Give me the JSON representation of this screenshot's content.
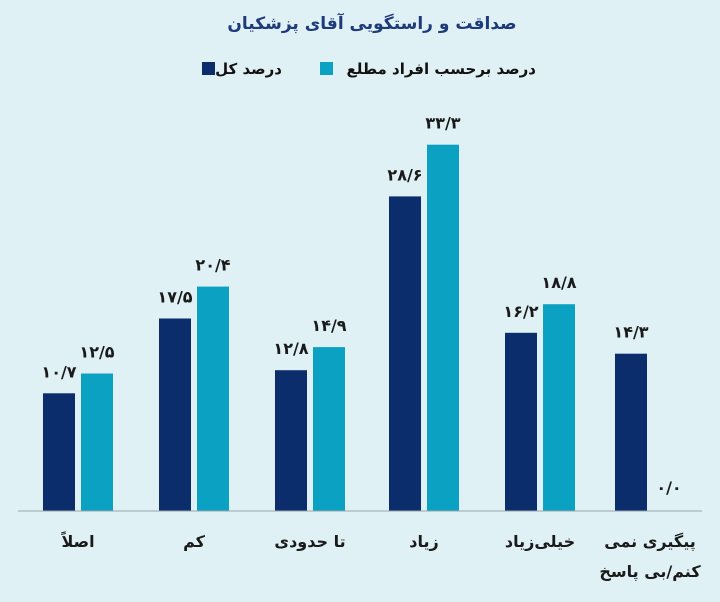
{
  "chart_data": {
    "type": "bar",
    "title": "صداقت و راستگویی آقای پزشکیان",
    "categories": [
      "اصلاً",
      "کم",
      "تا حدودی",
      "زیاد",
      "خیلی‌زیاد",
      "پیگیری نمی کنم/بی پاسخ"
    ],
    "category_lines": [
      [
        "اصلاً"
      ],
      [
        "کم"
      ],
      [
        "تا حدودی"
      ],
      [
        "زیاد"
      ],
      [
        "خیلی‌زیاد"
      ],
      [
        "پیگیری نمی",
        "کنم/بی پاسخ"
      ]
    ],
    "series": [
      {
        "name": "درصد کل",
        "color": "#0b2d6b",
        "values": [
          10.7,
          17.5,
          12.8,
          28.6,
          16.2,
          14.3
        ],
        "labels": [
          "۱۰/۷",
          "۱۷/۵",
          "۱۲/۸",
          "۲۸/۶",
          "۱۶/۲",
          "۱۴/۳"
        ]
      },
      {
        "name": "درصد برحسب افراد مطلع",
        "color": "#0aa1c2",
        "values": [
          12.5,
          20.4,
          14.9,
          33.3,
          18.8,
          0.0
        ],
        "labels": [
          "۱۲/۵",
          "۲۰/۴",
          "۱۴/۹",
          "۳۳/۳",
          "۱۸/۸",
          "۰/۰"
        ]
      }
    ],
    "ylim": [
      0,
      40
    ],
    "legend_position": "top",
    "grid": false
  }
}
